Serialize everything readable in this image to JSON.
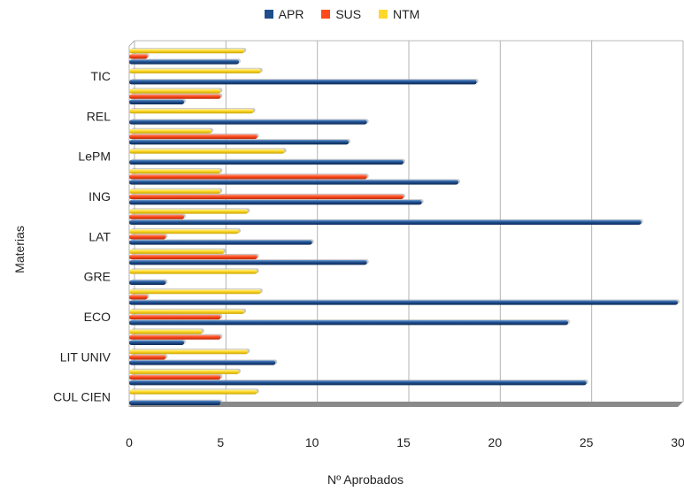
{
  "chart_data": {
    "type": "bar",
    "orientation": "horizontal",
    "title": "",
    "xlabel": "Nº Aprobados",
    "ylabel": "Materias",
    "xlim": [
      0,
      30
    ],
    "xticks": [
      "0",
      "5",
      "10",
      "15",
      "20",
      "25",
      "30"
    ],
    "grid": true,
    "legend_position": "top",
    "category_labels_shown": [
      "CUL CIEN",
      "LIT UNIV",
      "ECO",
      "GRE",
      "LAT",
      "ING",
      "LePM",
      "REL",
      "TIC"
    ],
    "series": [
      {
        "name": "APR",
        "color": "#1f4e8c"
      },
      {
        "name": "SUS",
        "color": "#ff4a1c"
      },
      {
        "name": "NTM",
        "color": "#ffd92a"
      }
    ],
    "groups": [
      {
        "APR": 5,
        "SUS": 0,
        "NTM": 7
      },
      {
        "APR": 25,
        "SUS": 5,
        "NTM": 6
      },
      {
        "APR": 8,
        "SUS": 2,
        "NTM": 6.5
      },
      {
        "APR": 3,
        "SUS": 5,
        "NTM": 4
      },
      {
        "APR": 24,
        "SUS": 5,
        "NTM": 6.3
      },
      {
        "APR": 30,
        "SUS": 1,
        "NTM": 7.2
      },
      {
        "APR": 2,
        "SUS": 0,
        "NTM": 7
      },
      {
        "APR": 13,
        "SUS": 7,
        "NTM": 5.2
      },
      {
        "APR": 10,
        "SUS": 2,
        "NTM": 6
      },
      {
        "APR": 28,
        "SUS": 3,
        "NTM": 6.5
      },
      {
        "APR": 16,
        "SUS": 15,
        "NTM": 5
      },
      {
        "APR": 18,
        "SUS": 13,
        "NTM": 5
      },
      {
        "APR": 15,
        "SUS": 0,
        "NTM": 8.5
      },
      {
        "APR": 12,
        "SUS": 7,
        "NTM": 4.5
      },
      {
        "APR": 13,
        "SUS": 0,
        "NTM": 6.8
      },
      {
        "APR": 3,
        "SUS": 5,
        "NTM": 5
      },
      {
        "APR": 19,
        "SUS": 0,
        "NTM": 7.2
      },
      {
        "APR": 6,
        "SUS": 1,
        "NTM": 6.3
      }
    ]
  }
}
